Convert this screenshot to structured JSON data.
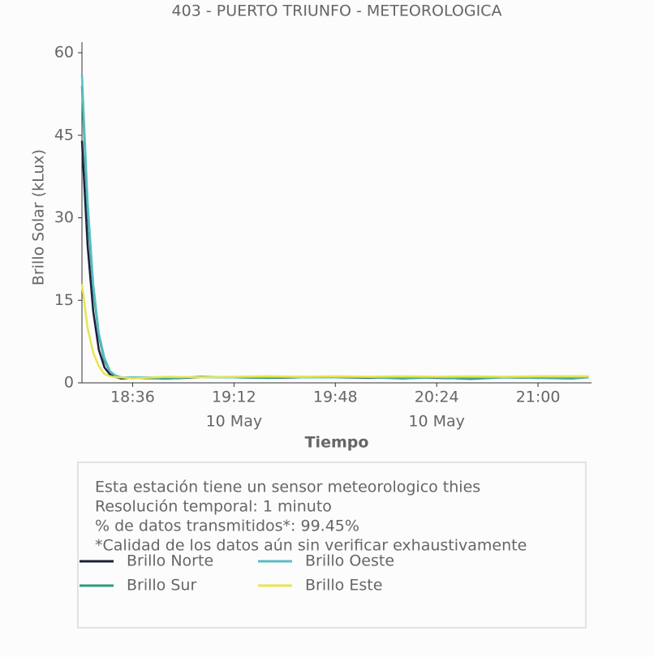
{
  "chart_data": {
    "type": "line",
    "title": "403 - PUERTO TRIUNFO - METEOROLOGICA",
    "x_label": "Tiempo",
    "y_label": "Brillo Solar (kLux)",
    "x": [
      "18:18",
      "18:20",
      "18:22",
      "18:24",
      "18:26",
      "18:28",
      "18:30",
      "18:32",
      "18:36",
      "18:48",
      "19:00",
      "19:12",
      "19:24",
      "19:36",
      "19:48",
      "20:00",
      "20:12",
      "20:24",
      "20:36",
      "20:48",
      "21:00",
      "21:12",
      "21:18"
    ],
    "series": [
      {
        "name": "Brillo Norte",
        "color": "#1c1f3a",
        "values": [
          44,
          25,
          13,
          6,
          2.8,
          1.5,
          1,
          0.8,
          0.9,
          0.8,
          1,
          1,
          0.9,
          1,
          1,
          0.9,
          1,
          0.9,
          0.8,
          1,
          0.9,
          1,
          1
        ]
      },
      {
        "name": "Brillo Sur",
        "color": "#2a9d7f",
        "values": [
          54,
          31,
          17,
          8.5,
          4,
          2,
          1.3,
          1,
          1,
          0.8,
          1.1,
          1,
          0.9,
          1.1,
          1,
          1,
          0.8,
          1,
          0.7,
          1,
          0.9,
          0.8,
          1
        ]
      },
      {
        "name": "Brillo Oeste",
        "color": "#5bbcc4",
        "values": [
          56,
          33,
          18,
          9,
          4.5,
          2.1,
          1.3,
          1,
          1,
          1,
          1,
          1,
          1.1,
          1,
          1,
          1,
          1,
          1,
          1,
          1,
          1,
          1,
          1
        ]
      },
      {
        "name": "Brillo Este",
        "color": "#e5e550",
        "values": [
          18,
          10,
          5.5,
          3,
          1.6,
          1.2,
          1,
          1,
          0.8,
          1.1,
          1,
          1.1,
          1.2,
          1.1,
          1.2,
          1.1,
          1.2,
          1.1,
          1.2,
          1.1,
          1.2,
          1.2,
          1.2
        ]
      }
    ],
    "xlim": [
      "18:18",
      "21:19"
    ],
    "xticks": [
      "18:36",
      "19:12",
      "19:48",
      "20:24",
      "21:00"
    ],
    "xtick_dates": [
      null,
      "10 May",
      null,
      "10 May",
      null
    ],
    "ylim": [
      0,
      60
    ],
    "yticks": [
      0,
      15,
      30,
      45,
      60
    ]
  },
  "notes": [
    "Esta estación tiene un sensor meteorologico thies",
    "Resolución temporal: 1 minuto",
    "% de datos transmitidos*: 99.45%",
    "*Calidad de los datos aún sin verificar exhaustivamente"
  ]
}
